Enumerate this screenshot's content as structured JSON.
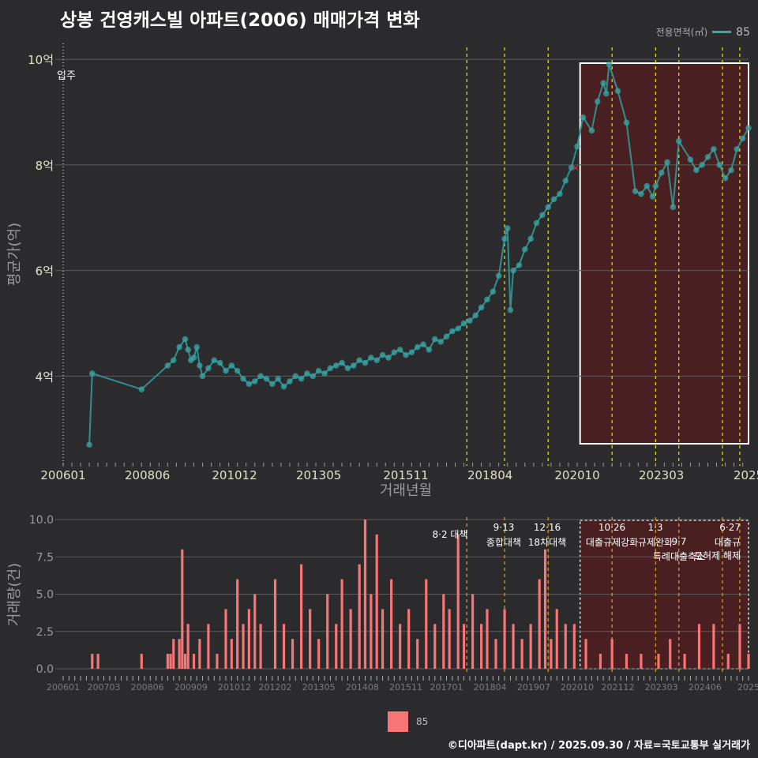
{
  "title": "상봉 건영캐스빌 아파트(2006) 매매가격 변화",
  "legend": {
    "title": "전용면적(㎡)",
    "series_name": "85"
  },
  "footer": "©디아파트(dapt.kr) / 2025.09.30 / 자료=국토교통부 실거래가",
  "colors": {
    "background": "#2b2b2d",
    "line": "#2f8f8f",
    "point": "#3aa6a6",
    "bar": "#f77575",
    "policy_line": "#e8e800",
    "highlight": "#4a1f22",
    "accent_x": "#ff3030"
  },
  "chart_data": [
    {
      "type": "scatter",
      "xlabel": "거래년월",
      "ylabel": "평균가(억)",
      "x_tick_labels": [
        "200601",
        "200806",
        "201012",
        "201305",
        "201511",
        "201804",
        "202010",
        "202303",
        "2025"
      ],
      "y_tick_labels": [
        "4억",
        "6억",
        "8억",
        "10억"
      ],
      "y_ticks": [
        4,
        6,
        8,
        10
      ],
      "xlim": [
        "2006-01",
        "2025-09"
      ],
      "ylim": [
        2.3,
        10.3
      ],
      "annotation": "입주",
      "highlight_range": [
        "2020-11",
        "2025-09"
      ],
      "policy_dates": [
        "2017-08",
        "2018-09",
        "2019-12",
        "2021-10",
        "2023-01",
        "2023-09",
        "2024-12",
        "2025-06"
      ],
      "series": [
        {
          "name": "85",
          "x": [
            "2006-10",
            "2006-11",
            "2008-04",
            "2009-01",
            "2009-03",
            "2009-05",
            "2009-07",
            "2009-08",
            "2009-09",
            "2009-10",
            "2009-11",
            "2009-12",
            "2010-01",
            "2010-03",
            "2010-05",
            "2010-07",
            "2010-09",
            "2010-11",
            "2011-01",
            "2011-03",
            "2011-05",
            "2011-07",
            "2011-09",
            "2011-11",
            "2012-01",
            "2012-03",
            "2012-05",
            "2012-07",
            "2012-09",
            "2012-11",
            "2013-01",
            "2013-03",
            "2013-05",
            "2013-07",
            "2013-09",
            "2013-11",
            "2014-01",
            "2014-03",
            "2014-05",
            "2014-07",
            "2014-09",
            "2014-11",
            "2015-01",
            "2015-03",
            "2015-05",
            "2015-07",
            "2015-09",
            "2015-11",
            "2016-01",
            "2016-03",
            "2016-05",
            "2016-07",
            "2016-09",
            "2016-11",
            "2017-01",
            "2017-03",
            "2017-05",
            "2017-07",
            "2017-09",
            "2017-11",
            "2018-01",
            "2018-03",
            "2018-05",
            "2018-07",
            "2018-09",
            "2018-10",
            "2018-11",
            "2018-12",
            "2019-02",
            "2019-04",
            "2019-06",
            "2019-08",
            "2019-10",
            "2019-12",
            "2020-02",
            "2020-04",
            "2020-06",
            "2020-08",
            "2020-10",
            "2020-12",
            "2021-03",
            "2021-05",
            "2021-07",
            "2021-08",
            "2021-09",
            "2021-12",
            "2022-03",
            "2022-06",
            "2022-08",
            "2022-10",
            "2022-12",
            "2023-01",
            "2023-03",
            "2023-05",
            "2023-07",
            "2023-09",
            "2024-01",
            "2024-03",
            "2024-05",
            "2024-07",
            "2024-09",
            "2024-11",
            "2025-01",
            "2025-03",
            "2025-05",
            "2025-07",
            "2025-09"
          ],
          "y": [
            2.7,
            4.05,
            3.75,
            4.2,
            4.3,
            4.55,
            4.7,
            4.5,
            4.3,
            4.35,
            4.55,
            4.2,
            4.0,
            4.15,
            4.3,
            4.25,
            4.1,
            4.2,
            4.1,
            3.95,
            3.85,
            3.9,
            4.0,
            3.95,
            3.85,
            3.95,
            3.8,
            3.9,
            4.0,
            3.95,
            4.05,
            4.0,
            4.1,
            4.05,
            4.15,
            4.2,
            4.25,
            4.15,
            4.2,
            4.3,
            4.25,
            4.35,
            4.3,
            4.4,
            4.35,
            4.45,
            4.5,
            4.4,
            4.45,
            4.55,
            4.6,
            4.5,
            4.7,
            4.65,
            4.75,
            4.85,
            4.9,
            5.0,
            5.05,
            5.15,
            5.3,
            5.45,
            5.6,
            5.9,
            6.6,
            6.8,
            5.25,
            6.0,
            6.1,
            6.4,
            6.6,
            6.9,
            7.05,
            7.2,
            7.35,
            7.45,
            7.7,
            7.95,
            8.35,
            8.9,
            8.65,
            9.2,
            9.55,
            9.35,
            9.9,
            9.4,
            8.8,
            7.5,
            7.45,
            7.6,
            7.4,
            7.6,
            7.85,
            8.05,
            7.2,
            8.45,
            8.1,
            7.9,
            8.0,
            8.15,
            8.3,
            8.0,
            7.75,
            7.9,
            8.3,
            8.5,
            8.7
          ]
        }
      ]
    },
    {
      "type": "bar",
      "ylabel": "거래량(건)",
      "y_tick_labels": [
        "0.0",
        "2.5",
        "5.0",
        "7.5",
        "10.0"
      ],
      "y_ticks": [
        0,
        2.5,
        5,
        7.5,
        10
      ],
      "x_tick_labels": [
        "200601",
        "200703",
        "200806",
        "200909",
        "201012",
        "201202",
        "201305",
        "201408",
        "201511",
        "201701",
        "201804",
        "201907",
        "202010",
        "202112",
        "202303",
        "202406",
        "2025"
      ],
      "ylim": [
        0,
        10
      ],
      "policy_annotations": [
        {
          "date": "8·2 대책",
          "label": ""
        },
        {
          "date": "9·13",
          "label": "종합대책"
        },
        {
          "date": "12·16",
          "label": "18차대책"
        },
        {
          "date": "10·26",
          "label": "대출규제강화"
        },
        {
          "date": "1·3",
          "label": "규제완화"
        },
        {
          "date": "9·7",
          "label": "특례대출축소"
        },
        {
          "date": "",
          "label": "토허제 해제"
        },
        {
          "date": "6·27",
          "label": "대출규"
        }
      ],
      "series": [
        {
          "name": "85",
          "x": [
            "2006-11",
            "2007-01",
            "2008-04",
            "2009-01",
            "2009-02",
            "2009-03",
            "2009-05",
            "2009-06",
            "2009-07",
            "2009-08",
            "2009-10",
            "2009-12",
            "2010-03",
            "2010-06",
            "2010-09",
            "2010-11",
            "2011-01",
            "2011-03",
            "2011-05",
            "2011-07",
            "2011-09",
            "2012-02",
            "2012-05",
            "2012-08",
            "2012-11",
            "2013-02",
            "2013-05",
            "2013-08",
            "2013-11",
            "2014-01",
            "2014-04",
            "2014-07",
            "2014-09",
            "2014-11",
            "2015-01",
            "2015-03",
            "2015-06",
            "2015-09",
            "2015-12",
            "2016-03",
            "2016-06",
            "2016-09",
            "2016-12",
            "2017-02",
            "2017-05",
            "2017-07",
            "2017-10",
            "2018-01",
            "2018-03",
            "2018-06",
            "2018-09",
            "2018-12",
            "2019-03",
            "2019-06",
            "2019-09",
            "2019-11",
            "2020-01",
            "2020-03",
            "2020-06",
            "2020-09",
            "2021-01",
            "2021-06",
            "2021-10",
            "2022-03",
            "2022-08",
            "2023-02",
            "2023-06",
            "2023-11",
            "2024-04",
            "2024-09",
            "2025-02",
            "2025-06",
            "2025-09"
          ],
          "values": [
            1,
            1,
            1,
            1,
            1,
            2,
            2,
            8,
            1,
            3,
            1,
            2,
            3,
            1,
            4,
            2,
            6,
            3,
            4,
            5,
            3,
            6,
            3,
            2,
            7,
            4,
            2,
            5,
            3,
            6,
            4,
            7,
            10,
            5,
            9,
            4,
            6,
            3,
            4,
            2,
            6,
            3,
            5,
            4,
            9,
            3,
            5,
            3,
            4,
            2,
            4,
            3,
            2,
            3,
            6,
            8,
            2,
            4,
            3,
            3,
            2,
            1,
            2,
            1,
            1,
            1,
            2,
            1,
            3,
            3,
            1,
            3,
            1
          ]
        }
      ]
    }
  ]
}
